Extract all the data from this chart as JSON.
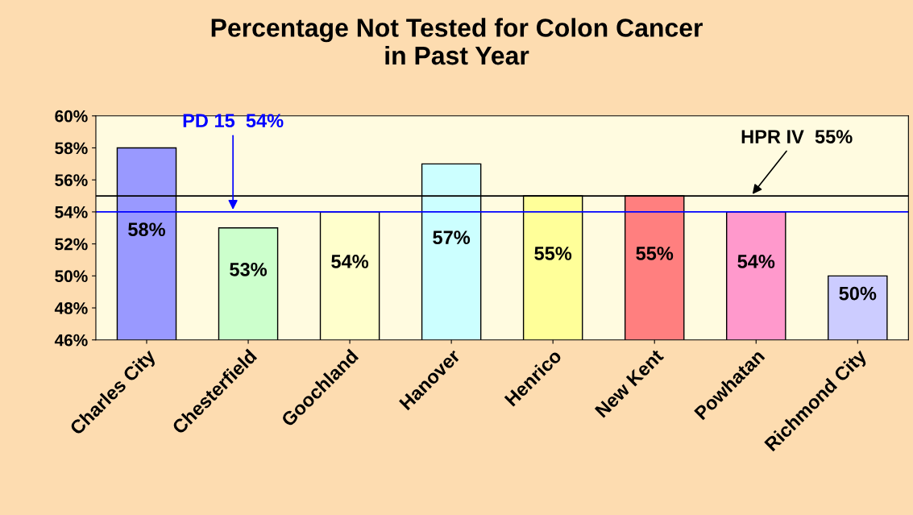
{
  "chart_data": {
    "type": "bar",
    "title": "Percentage Not Tested for Colon Cancer\nin Past Year",
    "categories": [
      "Charles City",
      "Chesterfield",
      "Goochland",
      "Hanover",
      "Henrico",
      "New Kent",
      "Powhatan",
      "Richmond City"
    ],
    "values": [
      58,
      53,
      54,
      57,
      55,
      55,
      54,
      50
    ],
    "colors": [
      "#9999ff",
      "#ccffcc",
      "#ffffcc",
      "#ccffff",
      "#ffff99",
      "#ff7f7f",
      "#ff99cc",
      "#ccccff"
    ],
    "value_labels": [
      "58%",
      "53%",
      "54%",
      "57%",
      "55%",
      "55%",
      "54%",
      "50%"
    ],
    "ylim": [
      46,
      60
    ],
    "yticks": [
      {
        "value": 46,
        "label": "46%"
      },
      {
        "value": 48,
        "label": "48%"
      },
      {
        "value": 50,
        "label": "50%"
      },
      {
        "value": 52,
        "label": "52%"
      },
      {
        "value": 54,
        "label": "54%"
      },
      {
        "value": 56,
        "label": "56%"
      },
      {
        "value": 58,
        "label": "58%"
      },
      {
        "value": 60,
        "label": "60%"
      }
    ],
    "ref_lines": [
      {
        "axis": "y",
        "value": 55,
        "label": "HPR IV  55%",
        "color": "#000000"
      },
      {
        "axis": "y",
        "value": 54,
        "label": "PD 15  54%",
        "color": "#0000ff"
      }
    ],
    "grid": false
  }
}
